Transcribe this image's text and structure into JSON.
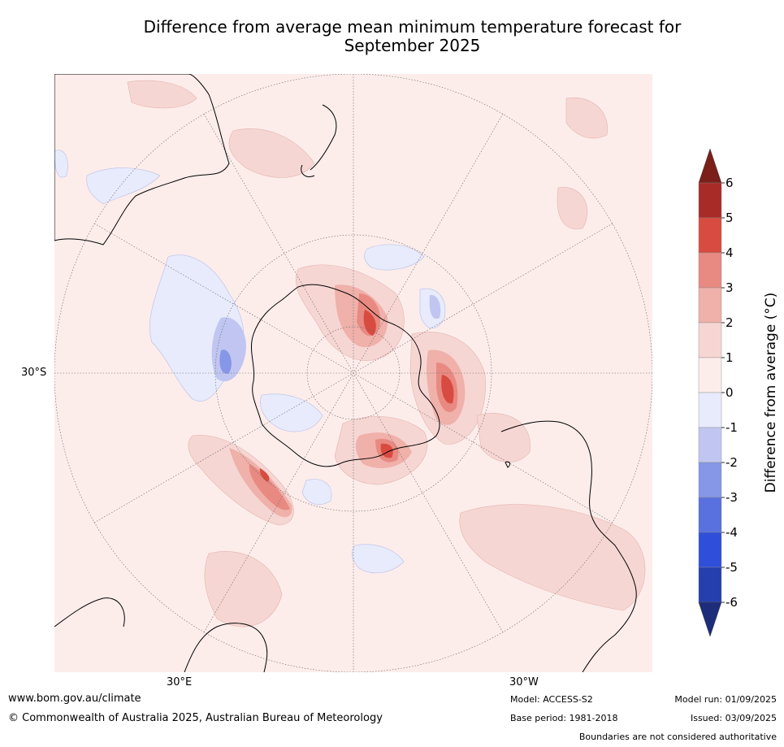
{
  "title_line1": "Difference from average mean minimum temperature forecast for",
  "title_line2": "September 2025",
  "lat_label": "30°S",
  "lon_labels": {
    "east": "30°E",
    "west": "30°W"
  },
  "colorbar": {
    "label": "Difference from average (°C)",
    "ticks": [
      "6",
      "5",
      "4",
      "3",
      "2",
      "1",
      "0",
      "-1",
      "-2",
      "-3",
      "-4",
      "-5",
      "-6"
    ],
    "over_color": "#7b1f1a",
    "under_color": "#1d2d7a",
    "band_colors": [
      "#a92b27",
      "#d84b40",
      "#e88a82",
      "#efb1aa",
      "#f6d6d3",
      "#fcedeb",
      "#e8ebfb",
      "#c0c6f1",
      "#8597e6",
      "#5970df",
      "#2f4fdb",
      "#263fae"
    ]
  },
  "footer": {
    "url": "www.bom.gov.au/climate",
    "copyright": "© Commonwealth of Australia 2025, Australian Bureau of Meteorology",
    "model": "Model: ACCESS-S2",
    "base_period": "Base period: 1981-2018",
    "model_run": "Model run: 01/09/2025",
    "issued": "Issued: 03/09/2025",
    "disclaimer": "Boundaries are not considered authoritative"
  }
}
